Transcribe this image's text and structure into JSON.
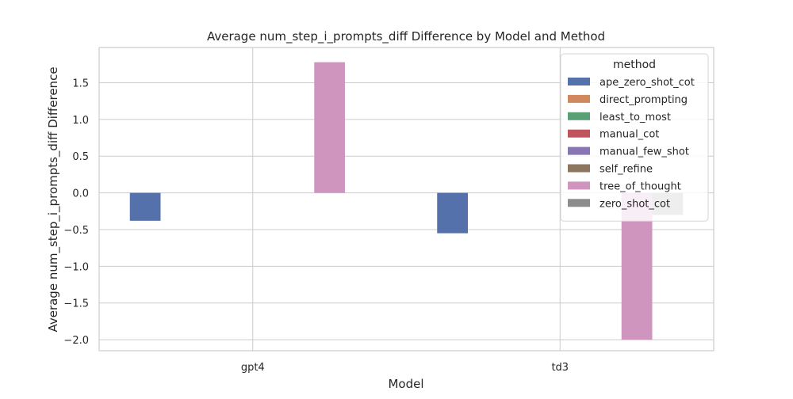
{
  "chart_data": {
    "type": "bar",
    "title": "Average num_step_i_prompts_diff Difference by Model and Method",
    "xlabel": "Model",
    "ylabel": "Average num_step_i_prompts_diff Difference",
    "categories": [
      "gpt4",
      "td3"
    ],
    "ylim": [
      -2.15,
      1.98
    ],
    "yticks": [
      -2.0,
      -1.5,
      -1.0,
      -0.5,
      0.0,
      0.5,
      1.0,
      1.5
    ],
    "ytick_labels": [
      "−2.0",
      "−1.5",
      "−1.0",
      "−0.5",
      "0.0",
      "0.5",
      "1.0",
      "1.5"
    ],
    "grid": true,
    "legend": {
      "title": "method",
      "placement": "top-right"
    },
    "series": [
      {
        "name": "ape_zero_shot_cot",
        "color": "#5471ab",
        "values": [
          -0.38,
          -0.55
        ]
      },
      {
        "name": "direct_prompting",
        "color": "#d1885c",
        "values": [
          0.0,
          0.0
        ]
      },
      {
        "name": "least_to_most",
        "color": "#59a076",
        "values": [
          0.0,
          0.0
        ]
      },
      {
        "name": "manual_cot",
        "color": "#c0545c",
        "values": [
          0.0,
          0.0
        ]
      },
      {
        "name": "manual_few_shot",
        "color": "#8776b1",
        "values": [
          0.0,
          0.0
        ]
      },
      {
        "name": "self_refine",
        "color": "#8c7660",
        "values": [
          0.0,
          0.0
        ]
      },
      {
        "name": "tree_of_thought",
        "color": "#d095bf",
        "values": [
          1.78,
          -2.0
        ]
      },
      {
        "name": "zero_shot_cot",
        "color": "#8c8c8c",
        "values": [
          0.0,
          -0.3
        ]
      }
    ]
  }
}
